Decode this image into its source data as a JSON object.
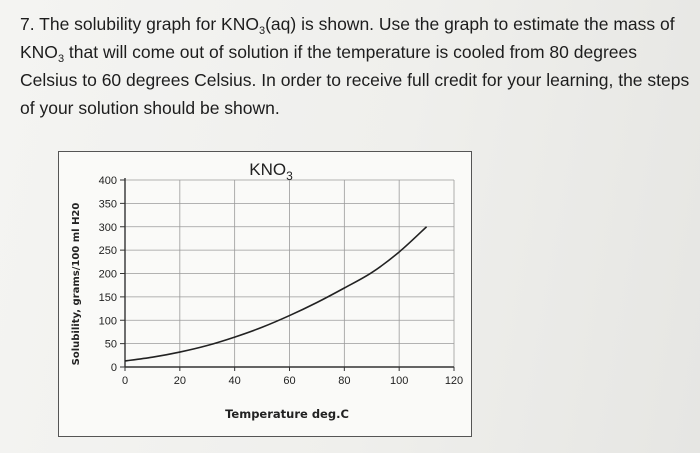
{
  "question": {
    "number": "7.",
    "part1": "The solubility graph for KNO",
    "sub1": "3",
    "part2": "(aq) is shown. Use the graph to estimate the mass of KNO",
    "sub2": "3",
    "part3": " that will come out of solution if the temperature is cooled from 80 degrees Celsius to 60 degrees Celsius. In order to receive full credit for your learning, the steps of your solution should be shown."
  },
  "chart_data": {
    "type": "line",
    "title": "KNO3",
    "title_base": "KNO",
    "title_sub": "3",
    "xlabel": "Temperature deg.C",
    "ylabel": "Solubility, grams/100 ml H20",
    "x_ticks": [
      "0",
      "20",
      "40",
      "60",
      "80",
      "100",
      "120"
    ],
    "y_ticks": [
      "0",
      "50",
      "100",
      "150",
      "200",
      "250",
      "300",
      "350",
      "400"
    ],
    "xlim": [
      0,
      120
    ],
    "ylim": [
      0,
      400
    ],
    "grid": true,
    "series": [
      {
        "x": [
          0,
          10,
          20,
          30,
          40,
          50,
          60,
          70,
          80,
          90,
          100,
          110
        ],
        "y": [
          13,
          21,
          32,
          46,
          64,
          85,
          110,
          138,
          169,
          202,
          246,
          300
        ]
      }
    ]
  }
}
